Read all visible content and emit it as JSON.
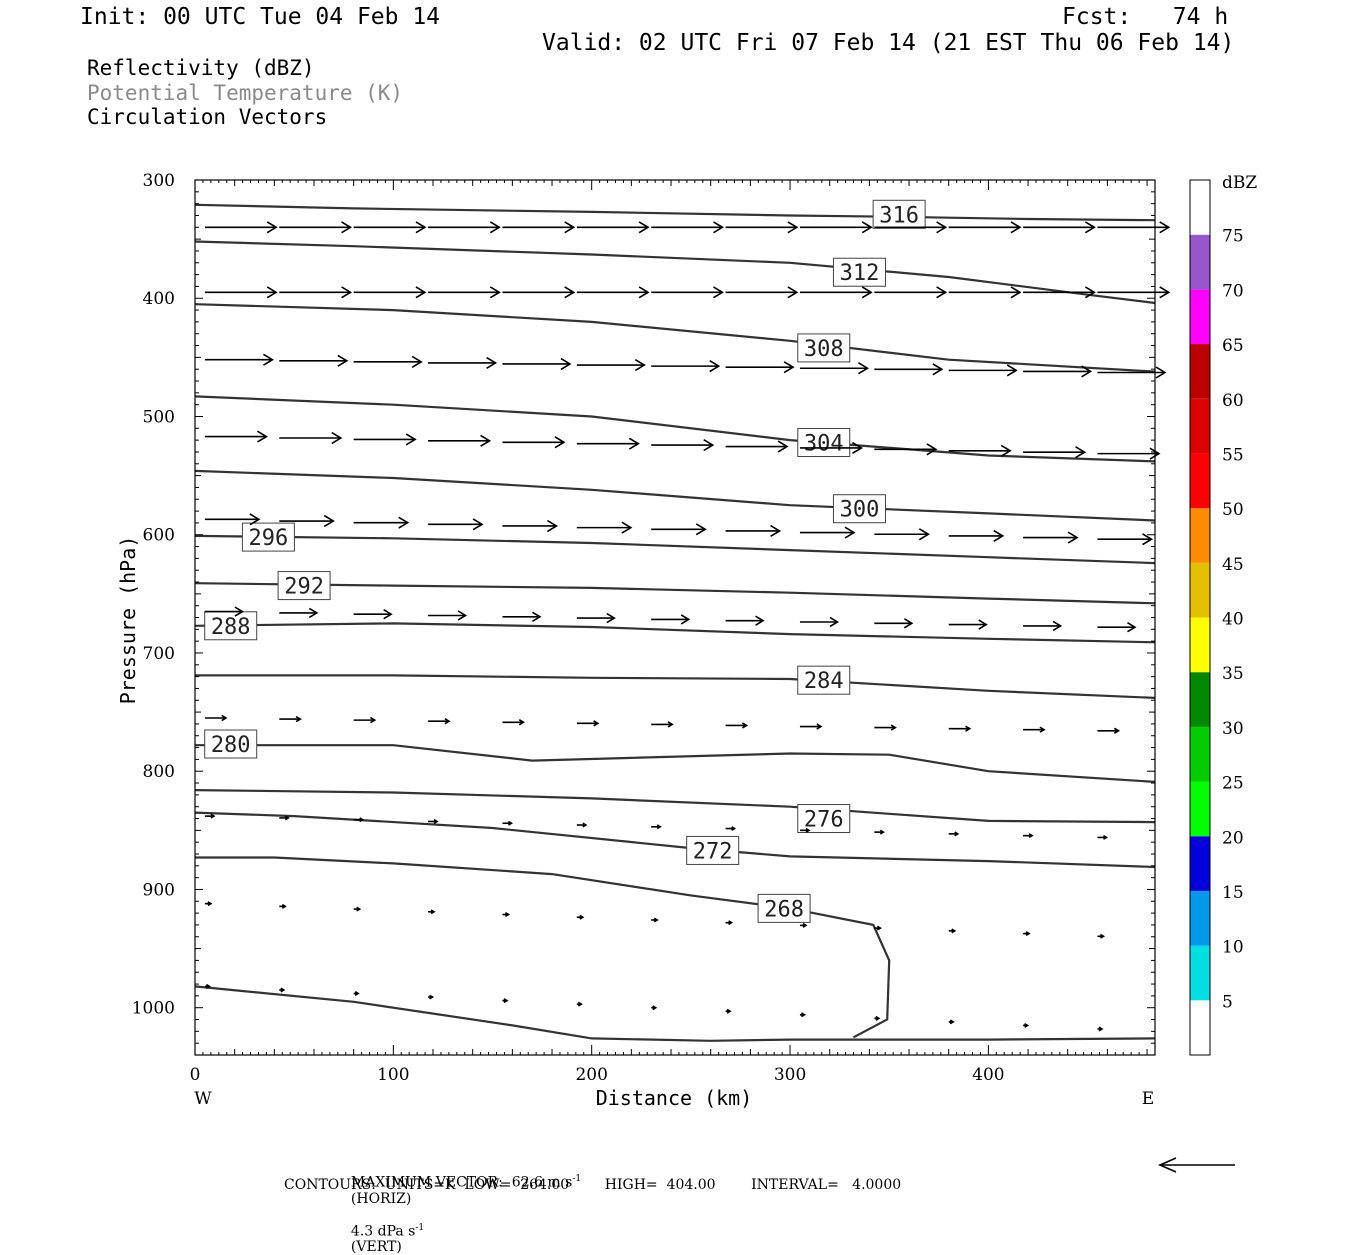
{
  "header": {
    "init": "Init: 00 UTC Tue 04 Feb 14",
    "fcst": "Fcst:   74 h",
    "valid": "Valid: 02 UTC Fri 07 Feb 14 (21 EST Thu 06 Feb 14)",
    "field1": "Reflectivity (dBZ)",
    "field2": "Potential Temperature (K)",
    "field3": "Circulation Vectors"
  },
  "footer": {
    "max_vector_a": "MAXIMUM VECTOR:  62.6 m s",
    "max_vector_b": "(HORIZ)",
    "max_vector_c": "4.3 dPa s",
    "max_vector_d": "(VERT)",
    "sup": "-1",
    "contours": "CONTOURS:  UNITS=K  LOW=  264.00        HIGH=  404.00        INTERVAL=   4.0000"
  },
  "chart_data": {
    "type": "line",
    "xlabel": "Distance (km)",
    "ylabel": "Pressure (hPa)",
    "xlim": [
      0,
      484
    ],
    "ylim": [
      1040,
      300
    ],
    "x_ticks": [
      0,
      100,
      200,
      300,
      400
    ],
    "y_ticks": [
      300,
      400,
      500,
      600,
      700,
      800,
      900,
      1000
    ],
    "x_end_labels": {
      "left": "W",
      "right": "E"
    },
    "colorbar": {
      "label": "dBZ",
      "ticks": [
        5,
        10,
        15,
        20,
        25,
        30,
        35,
        40,
        45,
        50,
        55,
        60,
        65,
        70,
        75
      ],
      "colors": [
        "#ffffff",
        "#00e0e0",
        "#0099ee",
        "#0000dd",
        "#00ff00",
        "#00cc00",
        "#008800",
        "#ffff00",
        "#e6bf00",
        "#ff8c00",
        "#ff0000",
        "#dd0000",
        "#bb0000",
        "#ff00ff",
        "#9955cc",
        "#ffffff"
      ]
    },
    "series": [
      {
        "name": "316",
        "x": [
          0,
          80,
          200,
          300,
          350,
          420,
          484
        ],
        "y": [
          321,
          324,
          327,
          330,
          331,
          333,
          334
        ],
        "label_at": [
          355,
          329
        ]
      },
      {
        "name": "312",
        "x": [
          0,
          80,
          200,
          300,
          380,
          450,
          484
        ],
        "y": [
          352,
          356,
          363,
          370,
          382,
          397,
          404
        ],
        "label_at": [
          335,
          378
        ]
      },
      {
        "name": "308",
        "x": [
          0,
          100,
          200,
          300,
          380,
          484
        ],
        "y": [
          405,
          410,
          420,
          436,
          452,
          462
        ],
        "label_at": [
          317,
          442
        ]
      },
      {
        "name": "304",
        "x": [
          0,
          100,
          200,
          300,
          400,
          484
        ],
        "y": [
          483,
          490,
          500,
          520,
          533,
          538
        ],
        "label_at": [
          317,
          522
        ]
      },
      {
        "name": "300",
        "x": [
          0,
          100,
          200,
          300,
          400,
          484
        ],
        "y": [
          546,
          552,
          562,
          575,
          582,
          588
        ],
        "label_at": [
          335,
          578
        ]
      },
      {
        "name": "296",
        "x": [
          0,
          100,
          200,
          300,
          400,
          484
        ],
        "y": [
          601,
          603,
          607,
          613,
          619,
          624
        ],
        "label_at": [
          37,
          602
        ]
      },
      {
        "name": "292",
        "x": [
          0,
          100,
          200,
          300,
          400,
          484
        ],
        "y": [
          641,
          643,
          645,
          649,
          654,
          658
        ],
        "label_at": [
          55,
          643
        ]
      },
      {
        "name": "288",
        "x": [
          0,
          100,
          200,
          300,
          400,
          484
        ],
        "y": [
          677,
          675,
          678,
          684,
          688,
          691
        ],
        "label_at": [
          18,
          677
        ]
      },
      {
        "name": "284",
        "x": [
          0,
          100,
          200,
          300,
          400,
          484
        ],
        "y": [
          719,
          719,
          721,
          722,
          732,
          738
        ],
        "label_at": [
          317,
          723
        ]
      },
      {
        "name": "280",
        "x": [
          0,
          100,
          170,
          300,
          350,
          400,
          484
        ],
        "y": [
          778,
          778,
          791,
          785,
          786,
          800,
          809
        ],
        "label_at": [
          18,
          777
        ]
      },
      {
        "name": "276",
        "x": [
          0,
          100,
          200,
          300,
          350,
          400,
          484
        ],
        "y": [
          816,
          818,
          823,
          830,
          836,
          842,
          843
        ],
        "label_at": [
          317,
          840
        ]
      },
      {
        "name": "272",
        "x": [
          0,
          50,
          150,
          250,
          300,
          400,
          484
        ],
        "y": [
          835,
          838,
          848,
          865,
          872,
          876,
          881
        ],
        "label_at": [
          261,
          867
        ]
      },
      {
        "name": "268",
        "x": [
          0,
          40,
          100,
          180,
          250,
          300,
          342,
          350,
          349,
          332
        ],
        "y": [
          873,
          873,
          878,
          887,
          905,
          916,
          930,
          960,
          1010,
          1025
        ],
        "label_at": [
          297,
          916
        ]
      },
      {
        "name": "264",
        "x": [
          0,
          80,
          160,
          200,
          260,
          300,
          400,
          484
        ],
        "y": [
          982,
          995,
          1015,
          1026,
          1028,
          1027,
          1027,
          1026
        ],
        "label_at": null
      }
    ]
  }
}
